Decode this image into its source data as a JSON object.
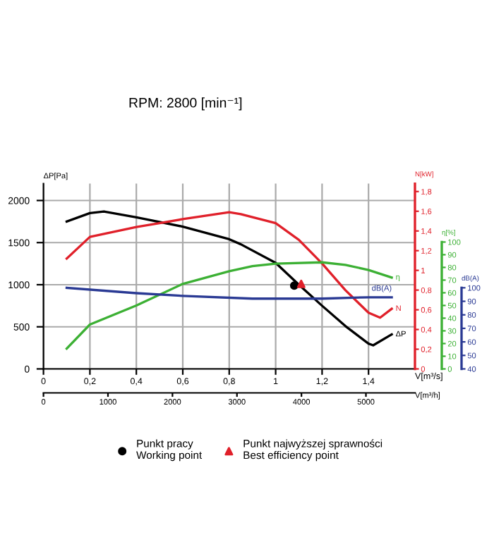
{
  "chart_data": [
    {
      "type": "line",
      "title": "RPM: 2800 [min⁻¹]",
      "xlabel": "V[m³/s]",
      "x2label": "V[m³/h]",
      "ylabel": "ΔP[Pa]",
      "y2label": "N[kW]",
      "y3label": "η[%]",
      "xlim": [
        0,
        1.6
      ],
      "xticks": [
        0,
        {
          "value": 0.2,
          "label": "0,2"
        },
        {
          "value": 0.4,
          "label": "0,4"
        },
        {
          "value": 0.6,
          "label": "0,6"
        },
        {
          "value": 0.8,
          "label": "0,8"
        },
        1,
        {
          "value": 1.2,
          "label": "1,2"
        },
        {
          "value": 1.4,
          "label": "1,4"
        }
      ],
      "x2lim": [
        0,
        5760
      ],
      "x2ticks": [
        0,
        1000,
        2000,
        3000,
        4000,
        5000
      ],
      "ylim": [
        0,
        2200
      ],
      "yticks": [
        0,
        500,
        1000,
        1500,
        2000
      ],
      "y2lim": [
        0,
        1.88
      ],
      "y2ticks": [
        0,
        {
          "value": 0.2,
          "label": "0,2"
        },
        {
          "value": 0.4,
          "label": "0,4"
        },
        {
          "value": 0.6,
          "label": "0,6"
        },
        {
          "value": 0.8,
          "label": "0,8"
        },
        1,
        {
          "value": 1.2,
          "label": "1,2"
        },
        {
          "value": 1.4,
          "label": "1,4"
        },
        {
          "value": 1.6,
          "label": "1,6"
        },
        {
          "value": 1.8,
          "label": "1,8"
        }
      ],
      "y3lim": [
        0,
        146
      ],
      "y3ticks": [
        0,
        10,
        20,
        30,
        40,
        50,
        60,
        70,
        80,
        90,
        100
      ],
      "grid": true,
      "legend": "bottom",
      "series": [
        {
          "name": "ΔP",
          "color": "#000000",
          "axis": "y",
          "x": [
            0.1,
            0.2,
            0.26,
            0.4,
            0.6,
            0.8,
            0.85,
            1.0,
            1.1,
            1.2,
            1.3,
            1.4,
            1.42,
            1.5
          ],
          "values": [
            1750,
            1850,
            1870,
            1800,
            1690,
            1540,
            1480,
            1260,
            1000,
            750,
            510,
            300,
            280,
            410
          ]
        },
        {
          "name": "N",
          "color": "#e0202a",
          "axis": "y2",
          "x": [
            0.1,
            0.2,
            0.4,
            0.5,
            0.6,
            0.8,
            0.85,
            1.0,
            1.1,
            1.2,
            1.3,
            1.4,
            1.45,
            1.5
          ],
          "values": [
            1.12,
            1.34,
            1.44,
            1.48,
            1.52,
            1.59,
            1.57,
            1.48,
            1.31,
            1.07,
            0.8,
            0.57,
            0.52,
            0.61
          ]
        },
        {
          "name": "η",
          "color": "#3cb034",
          "axis": "y3",
          "x": [
            0.1,
            0.2,
            0.4,
            0.6,
            0.8,
            0.9,
            1.0,
            1.2,
            1.3,
            1.4,
            1.5
          ],
          "values": [
            16,
            35,
            50,
            67,
            77,
            81,
            83,
            84,
            82,
            78,
            72
          ]
        },
        {
          "name": "Punkt pracy\nWorking point",
          "type": "scatter",
          "marker": "circle",
          "color": "#000000",
          "axis": "y",
          "x": [
            1.08
          ],
          "values": [
            990
          ]
        },
        {
          "name": "Punkt najwyższej sprawności\nBest efficiency point",
          "type": "scatter",
          "marker": "triangle",
          "color": "#e0202a",
          "axis": "y",
          "x": [
            1.11
          ],
          "values": [
            1010
          ]
        }
      ]
    },
    {
      "type": "line",
      "ylabel": "dB(A)",
      "xlim": [
        0,
        1.6
      ],
      "ylim": [
        40,
        177
      ],
      "yticks": [
        40,
        50,
        60,
        70,
        80,
        90,
        100
      ],
      "tick_labels": "y",
      "series": [
        {
          "name": "dB(A)",
          "color": "#2a3a94",
          "x": [
            0.1,
            0.4,
            0.6,
            0.9,
            1.0,
            1.2,
            1.4,
            1.5
          ],
          "values": [
            100,
            96,
            94,
            92,
            92,
            92,
            93,
            93
          ]
        }
      ]
    }
  ]
}
